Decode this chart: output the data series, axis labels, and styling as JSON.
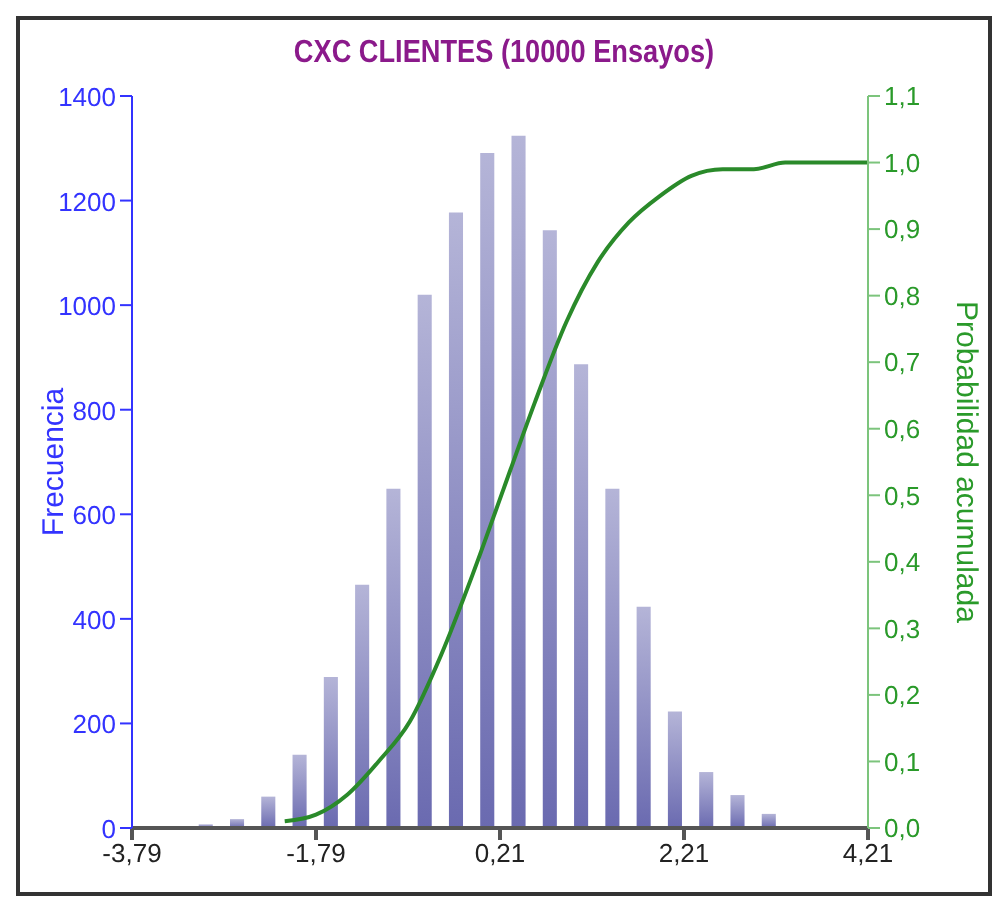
{
  "chart_data": {
    "type": "histogram",
    "title": "CXC CLIENTES (10000 Ensayos)",
    "ylabel": "Frecuencia",
    "y2label": "Probabilidad acumulada",
    "bins": [
      -3.15,
      -2.81,
      -2.47,
      -2.13,
      -1.79,
      -1.45,
      -1.11,
      -0.77,
      -0.43,
      -0.09,
      0.25,
      0.59,
      0.93,
      1.27,
      1.61,
      1.95,
      2.29,
      2.63,
      2.97,
      3.31
    ],
    "values": [
      7,
      17,
      60,
      140,
      289,
      465,
      649,
      1020,
      1177,
      1291,
      1324,
      1143,
      887,
      649,
      423,
      223,
      107,
      63,
      27
    ],
    "color": "#6a6ab0",
    "series": [
      {
        "type": "line",
        "axis": "y2",
        "color": "#2a8a2a",
        "x": [
          -2.13,
          -1.79,
          -1.45,
          -1.11,
          -0.77,
          -0.43,
          -0.09,
          0.25,
          0.59,
          0.93,
          1.27,
          1.61,
          1.95,
          2.29,
          2.63,
          2.97,
          3.31,
          3.9,
          4.21
        ],
        "values": [
          0.01,
          0.02,
          0.05,
          0.1,
          0.16,
          0.26,
          0.38,
          0.51,
          0.64,
          0.76,
          0.85,
          0.91,
          0.95,
          0.98,
          0.99,
          0.99,
          1.0,
          1.0,
          1.0
        ]
      }
    ],
    "xlim": [
      -3.79,
      4.21
    ],
    "xticks": [
      {
        "value": -3.79,
        "label": "-3,79"
      },
      {
        "value": -1.79,
        "label": "-1,79"
      },
      {
        "value": 0.21,
        "label": "0,21"
      },
      {
        "value": 2.21,
        "label": "2,21"
      },
      {
        "value": 4.21,
        "label": "4,21"
      }
    ],
    "ylim": [
      0,
      1400
    ],
    "yticks": [
      0,
      200,
      400,
      600,
      800,
      1000,
      1200,
      1400
    ],
    "y2lim": [
      0,
      1.1
    ],
    "y2ticks": [
      {
        "value": 0,
        "label": "0,0"
      },
      {
        "value": 0.1,
        "label": "0,1"
      },
      {
        "value": 0.2,
        "label": "0,2"
      },
      {
        "value": 0.3,
        "label": "0,3"
      },
      {
        "value": 0.4,
        "label": "0,4"
      },
      {
        "value": 0.5,
        "label": "0,5"
      },
      {
        "value": 0.6,
        "label": "0,6"
      },
      {
        "value": 0.7,
        "label": "0,7"
      },
      {
        "value": 0.8,
        "label": "0,8"
      },
      {
        "value": 0.9,
        "label": "0,9"
      },
      {
        "value": 1.0,
        "label": "1,0"
      },
      {
        "value": 1.1,
        "label": "1,1"
      }
    ],
    "grid": false,
    "legend": false
  }
}
